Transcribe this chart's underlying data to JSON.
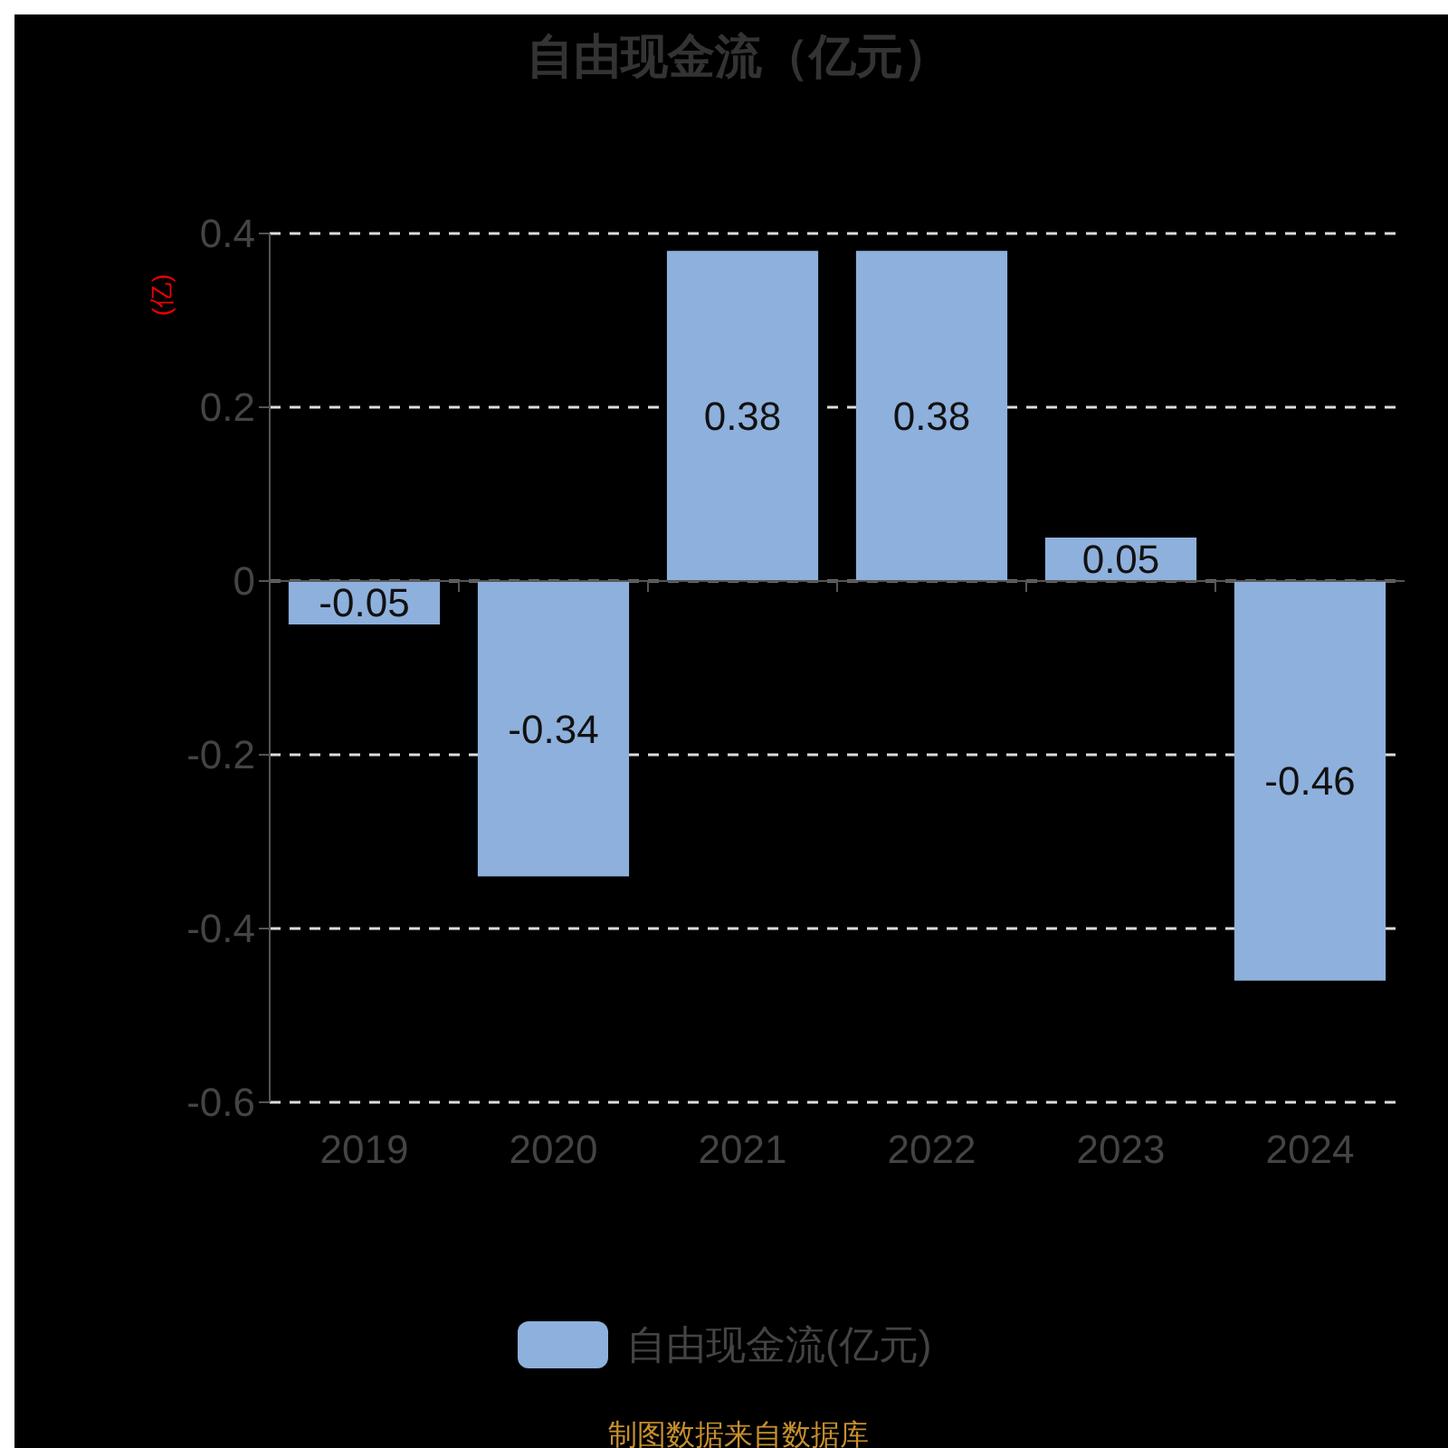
{
  "chart_data": {
    "type": "bar",
    "title": "自由现金流（亿元）",
    "ylabel": "(亿)",
    "categories": [
      "2019",
      "2020",
      "2021",
      "2022",
      "2023",
      "2024"
    ],
    "series": [
      {
        "name": "自由现金流(亿元)",
        "color": "#8eb0dc",
        "values": [
          -0.05,
          -0.34,
          0.38,
          0.38,
          0.05,
          -0.46
        ]
      }
    ],
    "ylim": [
      -0.6,
      0.4
    ],
    "yticks": [
      -0.6,
      -0.4,
      -0.2,
      0,
      0.2,
      0.4
    ],
    "grid": "y",
    "data_labels": true,
    "legend": "bottom",
    "annotations": [
      "制图数据来自数据库"
    ]
  }
}
